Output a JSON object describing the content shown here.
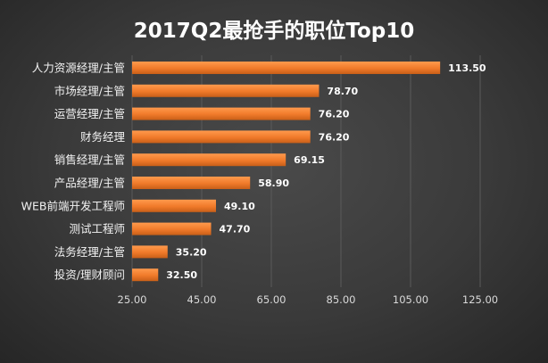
{
  "chart_data": {
    "type": "bar",
    "orientation": "horizontal",
    "title": "2017Q2最抢手的职位Top10",
    "categories": [
      "人力资源经理/主管",
      "市场经理/主管",
      "运营经理/主管",
      "财务经理",
      "销售经理/主管",
      "产品经理/主管",
      "WEB前端开发工程师",
      "测试工程师",
      "法务经理/主管",
      "投资/理财顾问"
    ],
    "values": [
      113.5,
      78.7,
      76.2,
      76.2,
      69.15,
      58.9,
      49.1,
      47.7,
      35.2,
      32.5
    ],
    "value_labels": [
      "113.50",
      "78.70",
      "76.20",
      "76.20",
      "69.15",
      "58.90",
      "49.10",
      "47.70",
      "35.20",
      "32.50"
    ],
    "xlim": [
      25,
      125
    ],
    "x_ticks": [
      "25.00",
      "45.00",
      "65.00",
      "85.00",
      "105.00",
      "125.00"
    ],
    "x_tick_values": [
      25,
      45,
      65,
      85,
      105,
      125
    ],
    "grid": true,
    "legend": "none",
    "colors": {
      "bar": "#f07a2a",
      "bar_highlight": "#ff9a4d",
      "bar_shadow": "#b85512",
      "grid": "#5a5a5a",
      "text": "#ffffff"
    }
  }
}
